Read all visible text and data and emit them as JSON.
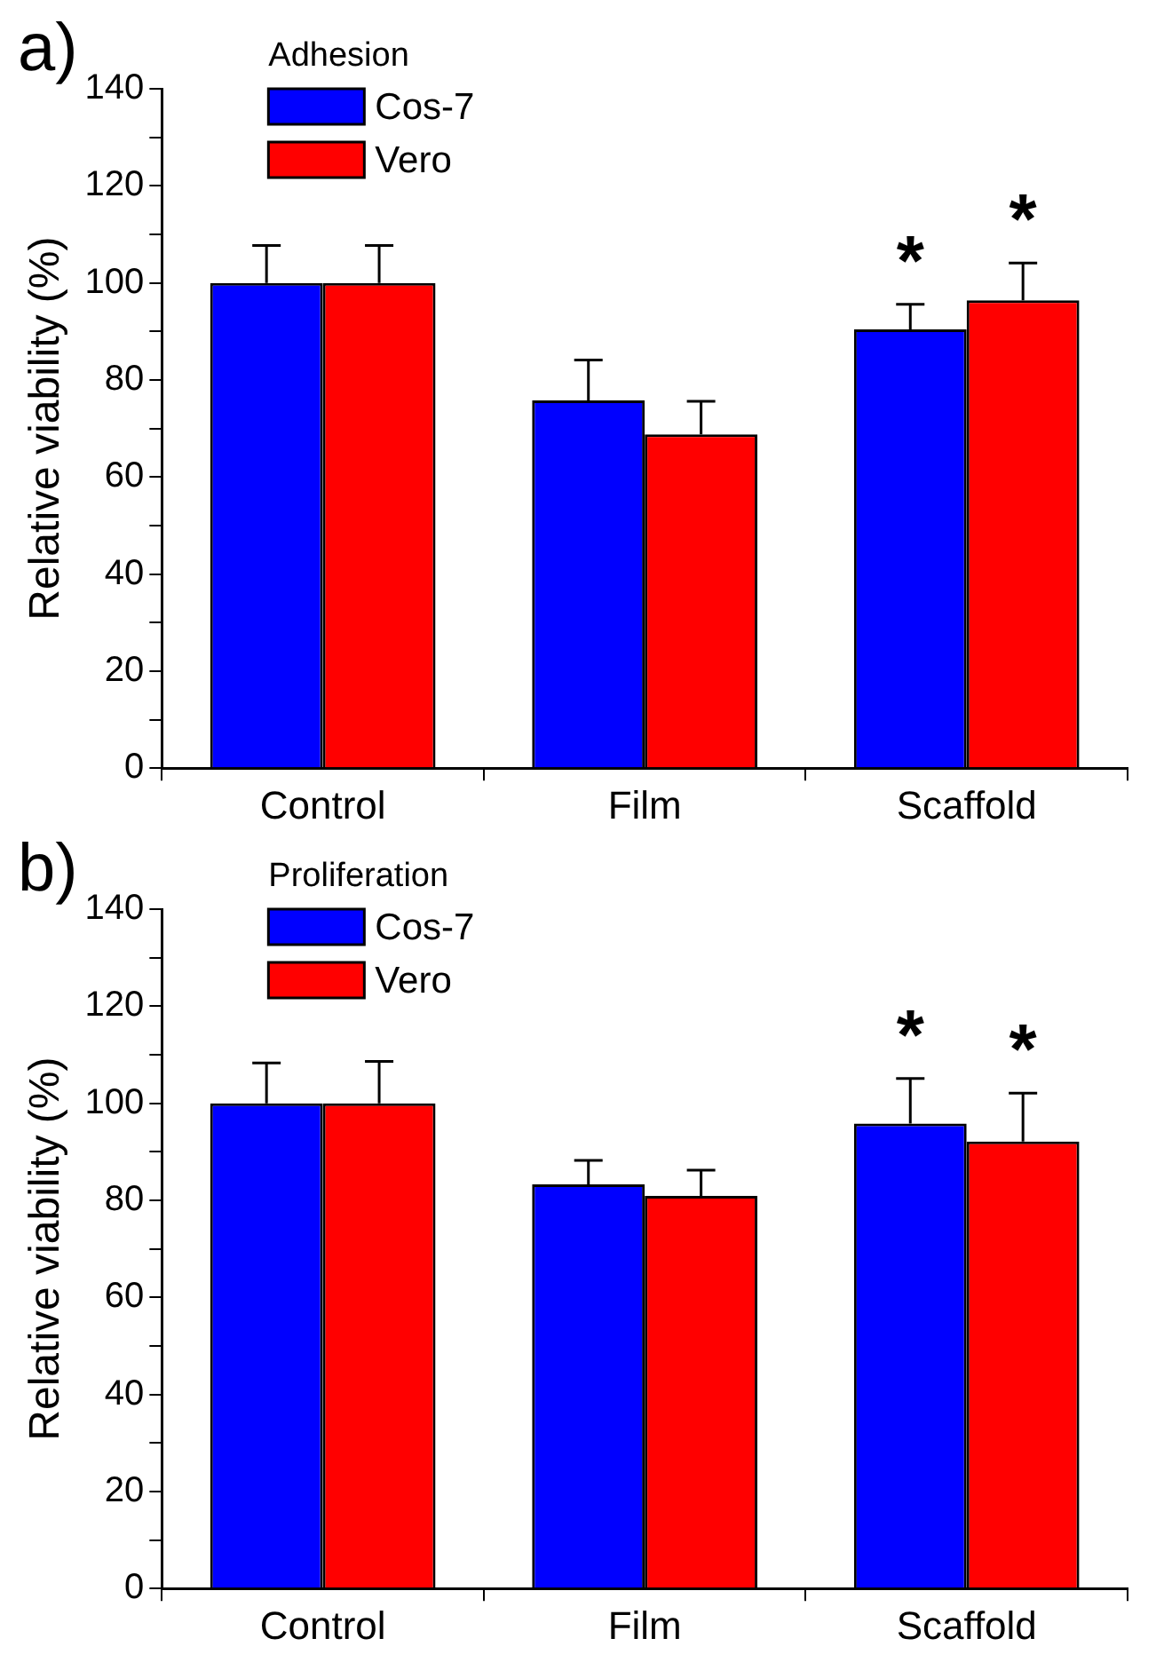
{
  "chart_data": [
    {
      "type": "bar",
      "title": "a)",
      "legend_title": "Adhesion",
      "ylabel": "Relative viability (%)",
      "categories": [
        "Control",
        "Film",
        "Scaffold"
      ],
      "series": [
        {
          "name": "Cos-7",
          "color": "#0000ff",
          "values": [
            100,
            75.8,
            90.4
          ],
          "errors": [
            [
              100,
              107.7
            ],
            [
              75.8,
              84.1
            ],
            [
              90.4,
              95.6
            ]
          ]
        },
        {
          "name": "Vero",
          "color": "#ff0000",
          "values": [
            100,
            68.8,
            96.4
          ],
          "errors": [
            [
              100,
              107.7
            ],
            [
              68.8,
              75.6
            ],
            [
              96.4,
              104.1
            ]
          ]
        }
      ],
      "ylim": [
        0,
        140
      ],
      "yticks": [
        0,
        {
          "value": 10,
          "label": null
        },
        20,
        {
          "value": 30,
          "label": null
        },
        40,
        {
          "value": 50,
          "label": null
        },
        60,
        {
          "value": 70,
          "label": null
        },
        80,
        {
          "value": 90,
          "label": null
        },
        100,
        {
          "value": 110,
          "label": null
        },
        120,
        {
          "value": 130,
          "label": null
        },
        140
      ],
      "annotations": [
        "*",
        "*"
      ],
      "legend": "top left",
      "grid": false
    },
    {
      "type": "bar",
      "title": "b)",
      "legend_title": "Proliferation",
      "ylabel": "Relative viability (%)",
      "categories": [
        "Control",
        "Film",
        "Scaffold"
      ],
      "series": [
        {
          "name": "Cos-7",
          "color": "#0000ff",
          "values": [
            100,
            83.3,
            95.8
          ],
          "errors": [
            [
              100,
              108.3
            ],
            [
              83.3,
              88.2
            ],
            [
              95.8,
              105.1
            ]
          ]
        },
        {
          "name": "Vero",
          "color": "#ff0000",
          "values": [
            100,
            80.9,
            92.1
          ],
          "errors": [
            [
              100,
              108.6
            ],
            [
              80.9,
              86.2
            ],
            [
              92.1,
              102.1
            ]
          ]
        }
      ],
      "ylim": [
        0,
        140
      ],
      "yticks": [
        0,
        {
          "value": 10,
          "label": null
        },
        20,
        {
          "value": 30,
          "label": null
        },
        40,
        {
          "value": 50,
          "label": null
        },
        60,
        {
          "value": 70,
          "label": null
        },
        80,
        {
          "value": 90,
          "label": null
        },
        100,
        {
          "value": 110,
          "label": null
        },
        120,
        {
          "value": 130,
          "label": null
        },
        140
      ],
      "annotations": [
        "*",
        "*"
      ],
      "legend": "top left",
      "grid": false
    }
  ]
}
